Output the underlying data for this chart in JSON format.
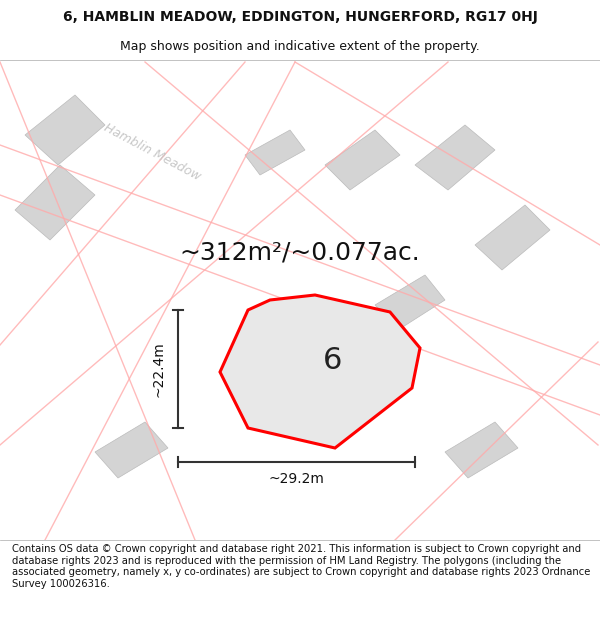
{
  "title_line1": "6, HAMBLIN MEADOW, EDDINGTON, HUNGERFORD, RG17 0HJ",
  "title_line2": "Map shows position and indicative extent of the property.",
  "area_text": "~312m²/~0.077ac.",
  "label_number": "6",
  "dim_height": "~22.4m",
  "dim_width": "~29.2m",
  "road_label": "Hamblin Meadow",
  "footer_text": "Contains OS data © Crown copyright and database right 2021. This information is subject to Crown copyright and database rights 2023 and is reproduced with the permission of HM Land Registry. The polygons (including the associated geometry, namely x, y co-ordinates) are subject to Crown copyright and database rights 2023 Ordnance Survey 100026316.",
  "background_color": "#ffffff",
  "property_color": "#e8e8e8",
  "polygon_border_color": "#ff0000",
  "road_line_color": "#ffaaaa",
  "building_color": "#d4d4d4",
  "dim_line_color": "#333333",
  "title_fontsize": 10,
  "subtitle_fontsize": 9,
  "area_fontsize": 18,
  "label_fontsize": 22,
  "dim_fontsize": 10,
  "footer_fontsize": 7.2
}
